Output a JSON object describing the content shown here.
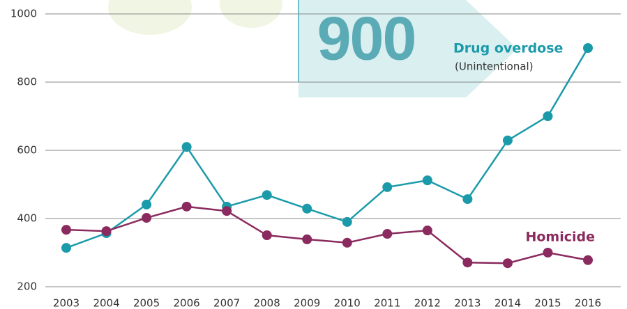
{
  "chart_data": {
    "type": "line",
    "categories": [
      "2003",
      "2004",
      "2005",
      "2006",
      "2007",
      "2008",
      "2009",
      "2010",
      "2011",
      "2012",
      "2013",
      "2014",
      "2015",
      "2016"
    ],
    "series": [
      {
        "name": "Drug overdose",
        "note": "(Unintentional)",
        "color": "#1b9aaa",
        "values": [
          314,
          357,
          441,
          610,
          435,
          469,
          429,
          390,
          492,
          512,
          457,
          629,
          700,
          900
        ]
      },
      {
        "name": "Homicide",
        "color": "#8b2a5e",
        "values": [
          367,
          363,
          402,
          435,
          422,
          351,
          339,
          329,
          355,
          365,
          271,
          269,
          300,
          278
        ]
      }
    ],
    "annotation": "900",
    "ylim": [
      200,
      1000
    ],
    "yticks": [
      200,
      400,
      600,
      800,
      1000
    ],
    "grid": true
  }
}
